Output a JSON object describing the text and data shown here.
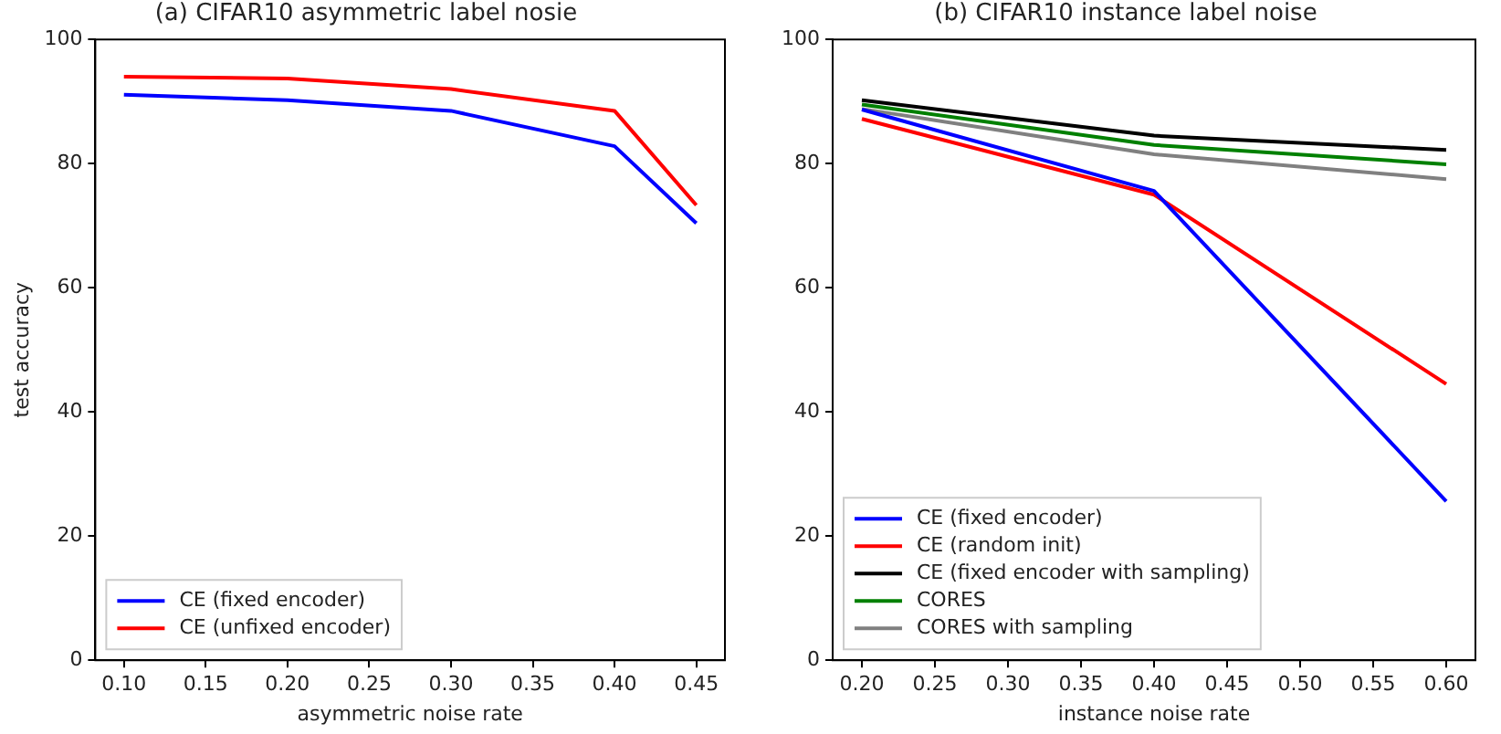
{
  "chart_data": [
    {
      "type": "line",
      "title": "(a) CIFAR10 asymmetric label nosie",
      "xlabel": "asymmetric noise rate",
      "ylabel": "test accuracy",
      "x": [
        0.1,
        0.2,
        0.3,
        0.4,
        0.45
      ],
      "series": [
        {
          "name": "CE (fixed encoder)",
          "color": "#0000ff",
          "values": [
            91.1,
            90.2,
            88.5,
            82.8,
            70.4
          ]
        },
        {
          "name": "CE (unfixed encoder)",
          "color": "#ff0000",
          "values": [
            94.0,
            93.7,
            92.0,
            88.5,
            73.3
          ]
        }
      ],
      "xlim": [
        0.0825,
        0.4675
      ],
      "xticks": [
        {
          "value": 0.1,
          "label": "0.10"
        },
        {
          "value": 0.15,
          "label": "0.15"
        },
        {
          "value": 0.2,
          "label": "0.20"
        },
        {
          "value": 0.25,
          "label": "0.25"
        },
        {
          "value": 0.3,
          "label": "0.30"
        },
        {
          "value": 0.35,
          "label": "0.35"
        },
        {
          "value": 0.4,
          "label": "0.40"
        },
        {
          "value": 0.45,
          "label": "0.45"
        }
      ],
      "ylim": [
        0,
        100
      ],
      "yticks": [
        0,
        20,
        40,
        60,
        80,
        100
      ],
      "legend": "bottom left",
      "grid": false,
      "line_style": "solid",
      "marker": "none"
    },
    {
      "type": "line",
      "title": "(b) CIFAR10 instance label noise",
      "xlabel": "instance noise rate",
      "x": [
        0.2,
        0.4,
        0.6
      ],
      "series": [
        {
          "name": "CE (fixed encoder)",
          "color": "#0000ff",
          "values": [
            88.7,
            75.6,
            25.6
          ]
        },
        {
          "name": "CE (random init)",
          "color": "#ff0000",
          "values": [
            87.2,
            75.0,
            44.5
          ]
        },
        {
          "name": "CE (fixed encoder with sampling)",
          "color": "#000000",
          "values": [
            90.2,
            84.5,
            82.2
          ]
        },
        {
          "name": "CORES",
          "color": "#008000",
          "values": [
            89.5,
            83.0,
            79.9
          ]
        },
        {
          "name": "CORES with sampling",
          "color": "#808080",
          "values": [
            88.8,
            81.5,
            77.5
          ]
        }
      ],
      "xlim": [
        0.18,
        0.62
      ],
      "xticks": [
        {
          "value": 0.2,
          "label": "0.20"
        },
        {
          "value": 0.25,
          "label": "0.25"
        },
        {
          "value": 0.3,
          "label": "0.30"
        },
        {
          "value": 0.35,
          "label": "0.35"
        },
        {
          "value": 0.4,
          "label": "0.40"
        },
        {
          "value": 0.45,
          "label": "0.45"
        },
        {
          "value": 0.5,
          "label": "0.50"
        },
        {
          "value": 0.55,
          "label": "0.55"
        },
        {
          "value": 0.6,
          "label": "0.60"
        }
      ],
      "ylim": [
        0,
        100
      ],
      "yticks": [
        0,
        20,
        40,
        60,
        80,
        100
      ],
      "legend": "bottom left",
      "grid": false,
      "line_style": "solid",
      "marker": "none"
    }
  ]
}
